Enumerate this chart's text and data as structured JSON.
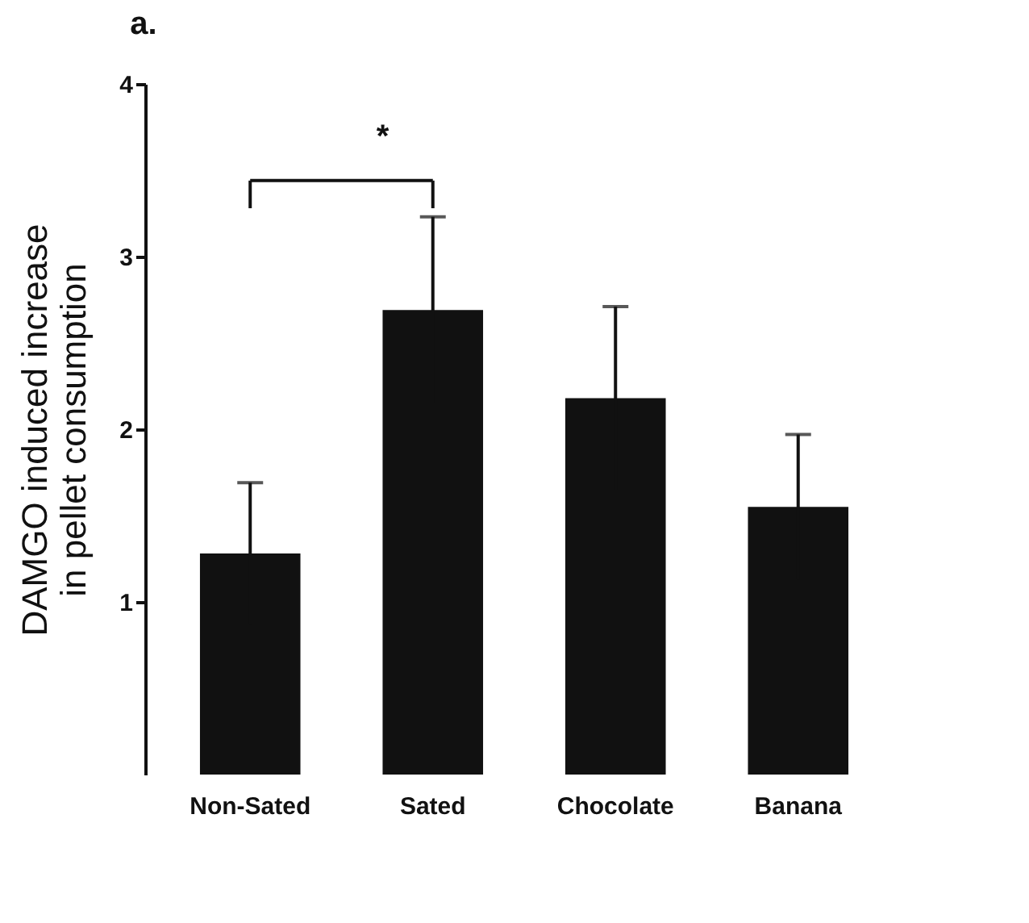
{
  "chart_data": {
    "type": "bar",
    "title": "a.",
    "ylabel": "DAMGO induced increase in pellet consumption",
    "categories": [
      "Non-Sated",
      "Sated",
      "Chocolate",
      "Banana"
    ],
    "values": [
      1.28,
      2.69,
      2.18,
      1.55
    ],
    "errors": [
      0.41,
      0.54,
      0.53,
      0.42
    ],
    "color": "#111111",
    "ylim": [
      0,
      4
    ],
    "yticks": [
      1,
      2,
      3,
      4
    ],
    "grid": false,
    "annotations": [
      "*"
    ]
  }
}
